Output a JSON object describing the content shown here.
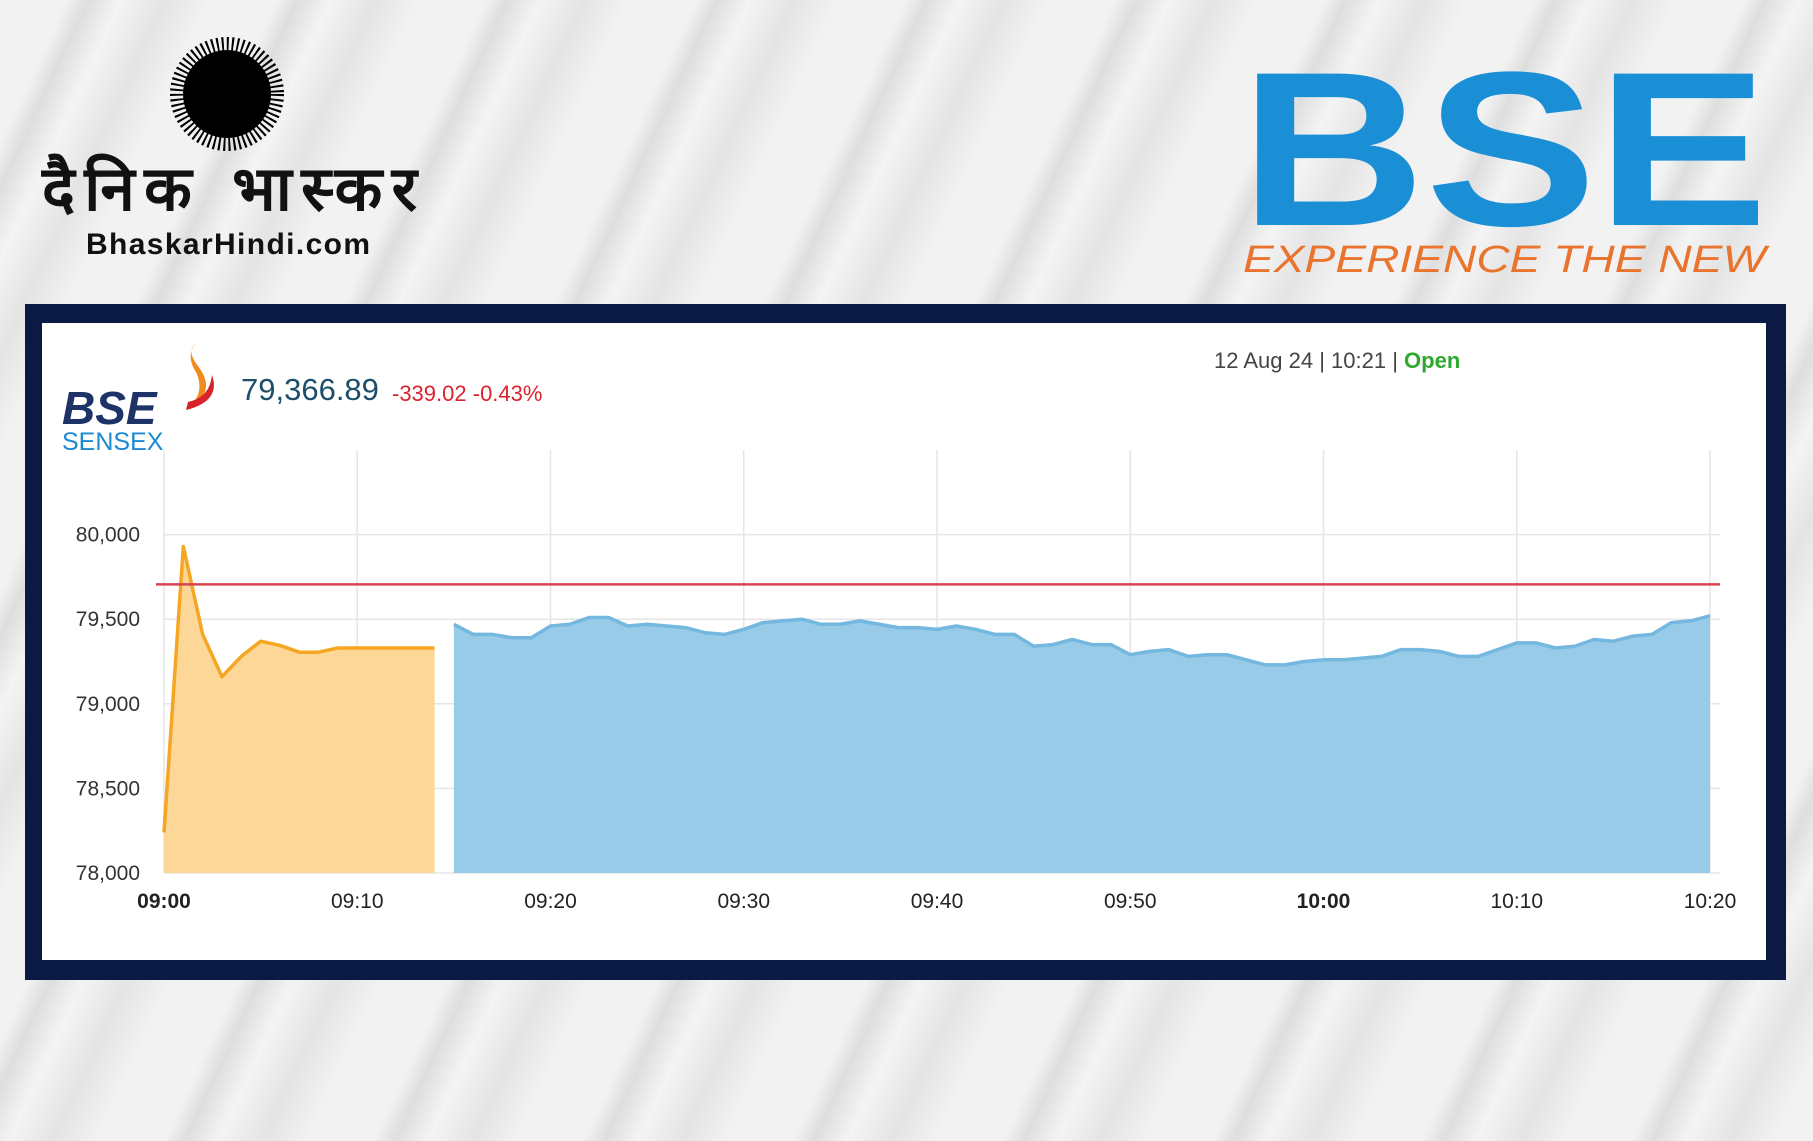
{
  "header": {
    "brand_hindi": "दैनिक भास्कर",
    "brand_site": "BhaskarHindi.com",
    "bse_logo": "BSE",
    "bse_tagline": "EXPERIENCE THE NEW",
    "index_logo": "BSE",
    "index_name": "SENSEX",
    "price": "79,366.89",
    "change": "-339.02",
    "change_pct": "-0.43%",
    "timestamp": "12 Aug 24 | 10:21 |",
    "status": "Open"
  },
  "chart_data": {
    "type": "area",
    "categories": [
      "09:00",
      "09:01",
      "09:02",
      "09:03",
      "09:04",
      "09:05",
      "09:06",
      "09:07",
      "09:08",
      "09:09",
      "09:10",
      "09:11",
      "09:12",
      "09:13",
      "09:14",
      "09:15",
      "09:16",
      "09:17",
      "09:18",
      "09:19",
      "09:20",
      "09:21",
      "09:22",
      "09:23",
      "09:24",
      "09:25",
      "09:26",
      "09:27",
      "09:28",
      "09:29",
      "09:30",
      "09:31",
      "09:32",
      "09:33",
      "09:34",
      "09:35",
      "09:36",
      "09:37",
      "09:38",
      "09:39",
      "09:40",
      "09:41",
      "09:42",
      "09:43",
      "09:44",
      "09:45",
      "09:46",
      "09:47",
      "09:48",
      "09:49",
      "09:50",
      "09:51",
      "09:52",
      "09:53",
      "09:54",
      "09:55",
      "09:56",
      "09:57",
      "09:58",
      "09:59",
      "10:00",
      "10:01",
      "10:02",
      "10:03",
      "10:04",
      "10:05",
      "10:06",
      "10:07",
      "10:08",
      "10:09",
      "10:10",
      "10:11",
      "10:12",
      "10:13",
      "10:14",
      "10:15",
      "10:16",
      "10:17",
      "10:18",
      "10:19",
      "10:20"
    ],
    "series": [
      {
        "color": "#f5a623",
        "fill": "#fcd798",
        "values": [
          78240,
          79930,
          79410,
          79160,
          79280,
          79370,
          79345,
          79305,
          79305,
          79330,
          79330,
          79330,
          79330,
          79330,
          79330,
          null,
          null,
          null,
          null,
          null,
          null,
          null,
          null,
          null,
          null,
          null,
          null,
          null,
          null,
          null,
          null,
          null,
          null,
          null,
          null,
          null,
          null,
          null,
          null,
          null,
          null,
          null,
          null,
          null,
          null,
          null,
          null,
          null,
          null,
          null,
          null,
          null,
          null,
          null,
          null,
          null,
          null,
          null,
          null,
          null,
          null,
          null,
          null,
          null,
          null,
          null,
          null,
          null,
          null,
          null,
          null,
          null,
          null,
          null,
          null,
          null,
          null,
          null,
          null,
          null,
          null
        ]
      },
      {
        "color": "#74b7df",
        "fill": "#97cbe8",
        "values": [
          null,
          null,
          null,
          null,
          null,
          null,
          null,
          null,
          null,
          null,
          null,
          null,
          null,
          null,
          null,
          79470,
          79410,
          79410,
          79390,
          79390,
          79460,
          79470,
          79510,
          79510,
          79460,
          79470,
          79460,
          79450,
          79420,
          79410,
          79440,
          79480,
          79490,
          79500,
          79470,
          79470,
          79490,
          79470,
          79450,
          79450,
          79440,
          79460,
          79440,
          79410,
          79410,
          79340,
          79350,
          79380,
          79350,
          79350,
          79290,
          79310,
          79320,
          79280,
          79290,
          79290,
          79260,
          79230,
          79230,
          79250,
          79260,
          79260,
          79270,
          79280,
          79320,
          79320,
          79310,
          79280,
          79280,
          79320,
          79360,
          79360,
          79330,
          79340,
          79380,
          79370,
          79400,
          79410,
          79480,
          79490,
          79520
        ]
      }
    ],
    "reference_line": {
      "value": 79705.91,
      "color": "#d9434f"
    },
    "ylim": [
      78000,
      80500
    ],
    "yticks": [
      {
        "value": 78000,
        "label": "78,000"
      },
      {
        "value": 78500,
        "label": "78,500"
      },
      {
        "value": 79000,
        "label": "79,000"
      },
      {
        "value": 79500,
        "label": "79,500"
      },
      {
        "value": 80000,
        "label": "80,000"
      }
    ],
    "xticks": [
      "09:00",
      "09:10",
      "09:20",
      "09:30",
      "09:40",
      "09:50",
      "10:00",
      "10:10",
      "10:20"
    ],
    "grid": true
  }
}
